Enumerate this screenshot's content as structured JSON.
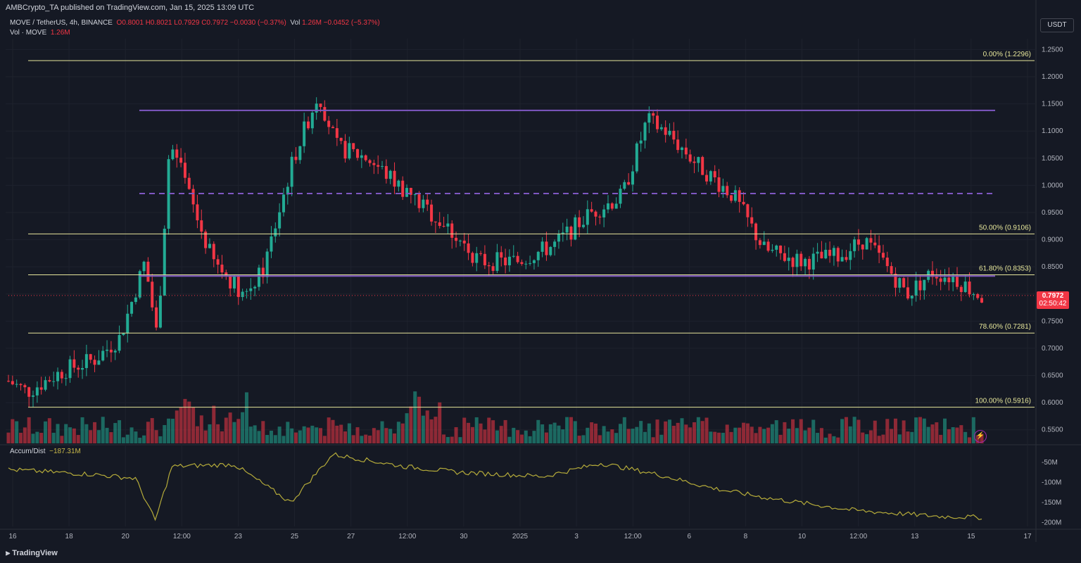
{
  "header": {
    "published": "AMBCrypto_TA published on TradingView.com, Jan 15, 2025 13:09 UTC",
    "symbol": "MOVE / TetherUS, 4h, BINANCE",
    "ohlc": "O0.8001 H0.8021 L0.7929 C0.7972 −0.0030 (−0.37%)",
    "vol_label": "Vol",
    "vol_values": "1.26M −0.0452 (−5.37%)",
    "vol_series_label": "Vol · MOVE",
    "vol_series_value": "1.26M",
    "currency": "USDT"
  },
  "price_badge": {
    "price": "0.7972",
    "countdown": "02:50:42"
  },
  "indicator": {
    "name": "Accum/Dist",
    "value": "−187.31M"
  },
  "branding": "TradingView",
  "colors": {
    "up": "#22ab94",
    "down": "#f23645",
    "fib": "#e6e69a",
    "resistance": "#7e57c2",
    "ad_line": "#b5ab3a"
  },
  "chart_data": {
    "type": "candlestick",
    "x_labels": [
      "16",
      "18",
      "20",
      "12:00",
      "23",
      "25",
      "27",
      "12:00",
      "30",
      "2025",
      "3",
      "12:00",
      "6",
      "8",
      "10",
      "12:00",
      "13",
      "15",
      "17"
    ],
    "y_ticks": [
      "1.2500",
      "1.2000",
      "1.1500",
      "1.1000",
      "1.0500",
      "1.0000",
      "0.9500",
      "0.9000",
      "0.8500",
      "0.8000",
      "0.7500",
      "0.7000",
      "0.6500",
      "0.6000",
      "0.5500"
    ],
    "y_range": [
      0.525,
      1.27
    ],
    "fib_levels": [
      {
        "label": "0.00% (1.2296)",
        "price": 1.2296
      },
      {
        "label": "50.00% (0.9106)",
        "price": 0.9106
      },
      {
        "label": "61.80% (0.8353)",
        "price": 0.8353
      },
      {
        "label": "78.60% (0.7281)",
        "price": 0.7281
      },
      {
        "label": "100.00% (0.5916)",
        "price": 0.5916
      }
    ],
    "horizontal_lines": [
      {
        "price": 1.138,
        "style": "solid"
      },
      {
        "price": 0.985,
        "style": "dashed"
      },
      {
        "price": 0.833,
        "style": "solid"
      }
    ],
    "last_close": 0.7972,
    "ad_ticks": [
      "-50M",
      "-100M",
      "-150M",
      "-200M"
    ],
    "ad_range": [
      -210,
      -20
    ],
    "ad_last": -187.31
  }
}
